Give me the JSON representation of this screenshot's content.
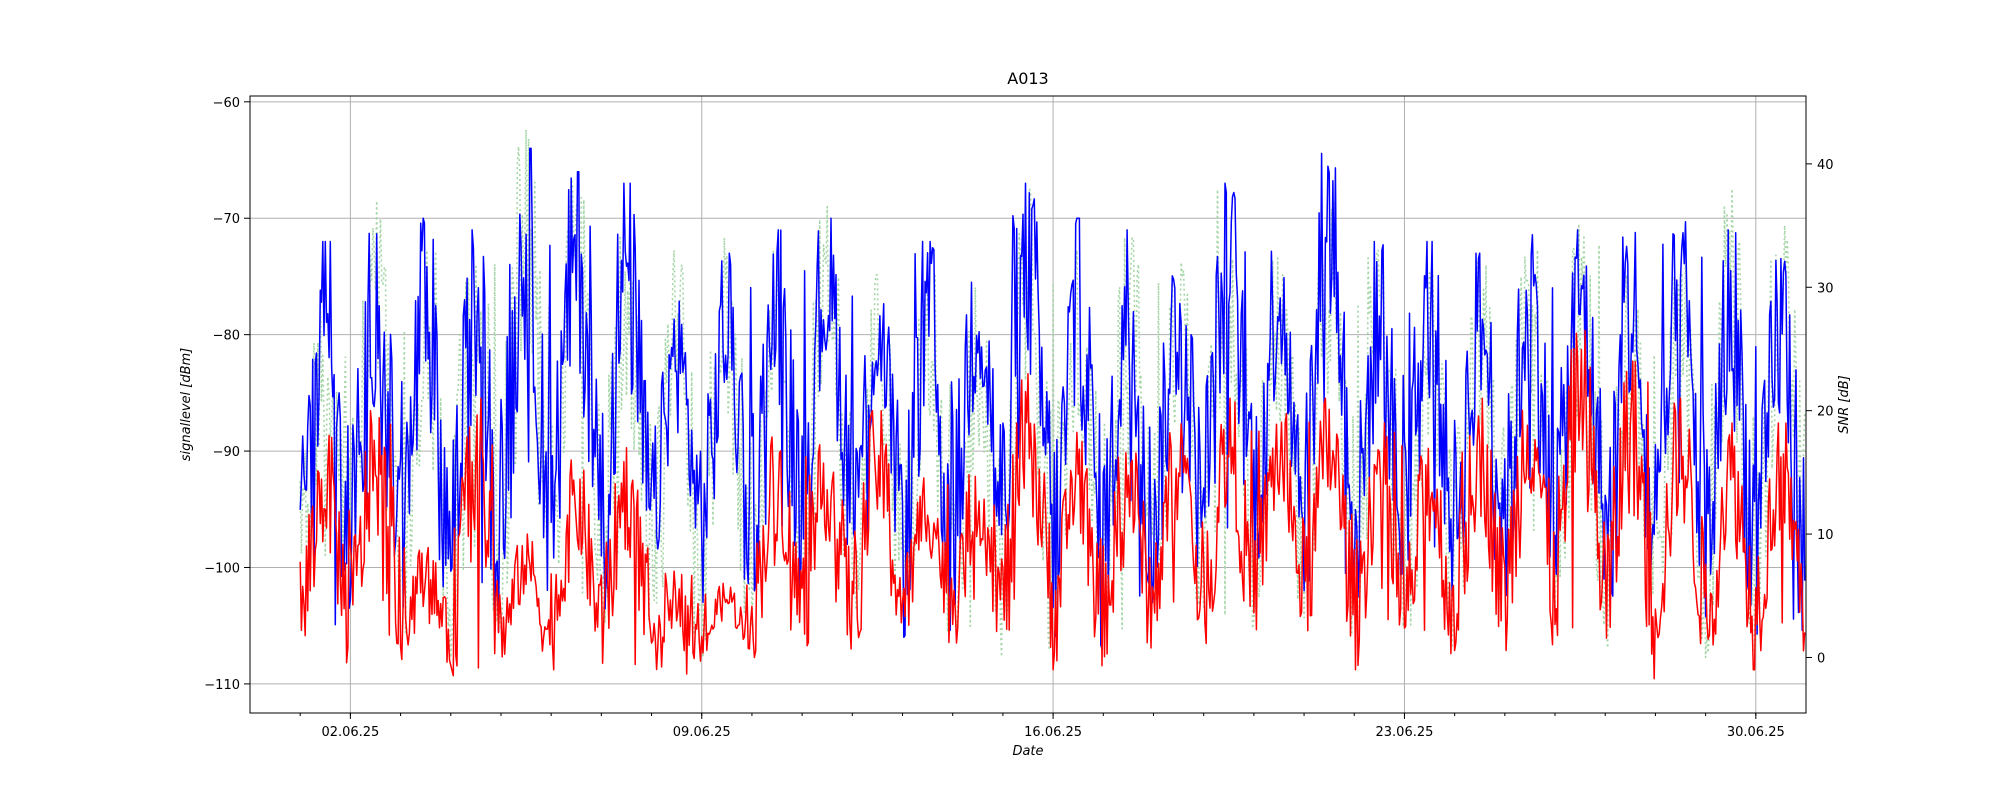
{
  "chart_data": {
    "type": "line",
    "title": "A013",
    "xlabel": "Date",
    "ylabel_left": "signallevel [dBm]",
    "ylabel_right": "SNR [dB]",
    "grid": true,
    "x_range": [
      "31.05.25",
      "01.07.25"
    ],
    "y_left_range": [
      -112.5,
      -59.5
    ],
    "y_right_range": [
      -4.5,
      45.5
    ],
    "x_ticks": [
      "02.06.25",
      "09.06.25",
      "16.06.25",
      "23.06.25",
      "30.06.25"
    ],
    "y_left_ticks": [
      -60,
      -70,
      -80,
      -90,
      -100,
      -110
    ],
    "y_right_ticks": [
      40,
      30,
      20,
      10,
      0
    ],
    "data_start": "01.06.25",
    "data_end": "30.06.25",
    "series": [
      {
        "axis": "right",
        "color": "#a5d6a7",
        "style": "dotted",
        "daily": [
          {
            "date": "01.06.25",
            "min": 4,
            "max": 30
          },
          {
            "date": "02.06.25",
            "min": 1,
            "max": 37
          },
          {
            "date": "03.06.25",
            "min": 0,
            "max": 33
          },
          {
            "date": "04.06.25",
            "min": 0,
            "max": 36
          },
          {
            "date": "05.06.25",
            "min": 2,
            "max": 43
          },
          {
            "date": "06.06.25",
            "min": 3,
            "max": 40
          },
          {
            "date": "07.06.25",
            "min": 2,
            "max": 35
          },
          {
            "date": "08.06.25",
            "min": 1,
            "max": 33
          },
          {
            "date": "09.06.25",
            "min": 0,
            "max": 34
          },
          {
            "date": "10.06.25",
            "min": 2,
            "max": 33
          },
          {
            "date": "11.06.25",
            "min": 4,
            "max": 37
          },
          {
            "date": "12.06.25",
            "min": 3,
            "max": 31
          },
          {
            "date": "13.06.25",
            "min": 0,
            "max": 33
          },
          {
            "date": "14.06.25",
            "min": 0,
            "max": 30
          },
          {
            "date": "15.06.25",
            "min": 0,
            "max": 38
          },
          {
            "date": "16.06.25",
            "min": 2,
            "max": 33
          },
          {
            "date": "17.06.25",
            "min": 2,
            "max": 34
          },
          {
            "date": "18.06.25",
            "min": 1,
            "max": 34
          },
          {
            "date": "19.06.25",
            "min": 2,
            "max": 40
          },
          {
            "date": "20.06.25",
            "min": 3,
            "max": 33
          },
          {
            "date": "21.06.25",
            "min": 2,
            "max": 37
          },
          {
            "date": "22.06.25",
            "min": 1,
            "max": 33
          },
          {
            "date": "23.06.25",
            "min": 0,
            "max": 32
          },
          {
            "date": "24.06.25",
            "min": 2,
            "max": 32
          },
          {
            "date": "25.06.25",
            "min": 2,
            "max": 35
          },
          {
            "date": "26.06.25",
            "min": 1,
            "max": 35
          },
          {
            "date": "27.06.25",
            "min": -2,
            "max": 31
          },
          {
            "date": "28.06.25",
            "min": 0,
            "max": 33
          },
          {
            "date": "29.06.25",
            "min": 0,
            "max": 38
          },
          {
            "date": "30.06.25",
            "min": 1,
            "max": 37
          }
        ]
      },
      {
        "axis": "left",
        "color": "#0000ff",
        "style": "solid",
        "daily": [
          {
            "date": "01.06.25",
            "min": -105,
            "max": -72
          },
          {
            "date": "02.06.25",
            "min": -104,
            "max": -70
          },
          {
            "date": "03.06.25",
            "min": -107,
            "max": -70
          },
          {
            "date": "04.06.25",
            "min": -106,
            "max": -71
          },
          {
            "date": "05.06.25",
            "min": -103,
            "max": -64
          },
          {
            "date": "06.06.25",
            "min": -102,
            "max": -66
          },
          {
            "date": "07.06.25",
            "min": -104,
            "max": -67
          },
          {
            "date": "08.06.25",
            "min": -101,
            "max": -77
          },
          {
            "date": "09.06.25",
            "min": -103,
            "max": -73
          },
          {
            "date": "10.06.25",
            "min": -102,
            "max": -71
          },
          {
            "date": "11.06.25",
            "min": -99,
            "max": -70
          },
          {
            "date": "12.06.25",
            "min": -100,
            "max": -75
          },
          {
            "date": "13.06.25",
            "min": -106,
            "max": -72
          },
          {
            "date": "14.06.25",
            "min": -104,
            "max": -70
          },
          {
            "date": "15.06.25",
            "min": -103,
            "max": -67
          },
          {
            "date": "16.06.25",
            "min": -107,
            "max": -70
          },
          {
            "date": "17.06.25",
            "min": -105,
            "max": -71
          },
          {
            "date": "18.06.25",
            "min": -102,
            "max": -72
          },
          {
            "date": "19.06.25",
            "min": -100,
            "max": -67
          },
          {
            "date": "20.06.25",
            "min": -101,
            "max": -70
          },
          {
            "date": "21.06.25",
            "min": -102,
            "max": -62
          },
          {
            "date": "22.06.25",
            "min": -105,
            "max": -72
          },
          {
            "date": "23.06.25",
            "min": -103,
            "max": -72
          },
          {
            "date": "24.06.25",
            "min": -102,
            "max": -73
          },
          {
            "date": "25.06.25",
            "min": -103,
            "max": -70
          },
          {
            "date": "26.06.25",
            "min": -101,
            "max": -71
          },
          {
            "date": "27.06.25",
            "min": -107,
            "max": -70
          },
          {
            "date": "28.06.25",
            "min": -104,
            "max": -70
          },
          {
            "date": "29.06.25",
            "min": -106,
            "max": -71
          },
          {
            "date": "30.06.25",
            "min": -107,
            "max": -72
          }
        ]
      },
      {
        "axis": "right",
        "color": "#ff0000",
        "style": "solid",
        "daily": [
          {
            "date": "01.06.25",
            "min": -1,
            "max": 18
          },
          {
            "date": "02.06.25",
            "min": -1,
            "max": 20
          },
          {
            "date": "03.06.25",
            "min": -1,
            "max": 9
          },
          {
            "date": "04.06.25",
            "min": -2,
            "max": 21
          },
          {
            "date": "05.06.25",
            "min": -1,
            "max": 10
          },
          {
            "date": "06.06.25",
            "min": -1,
            "max": 16
          },
          {
            "date": "07.06.25",
            "min": -1,
            "max": 17
          },
          {
            "date": "08.06.25",
            "min": -2,
            "max": 7
          },
          {
            "date": "09.06.25",
            "min": 0,
            "max": 6
          },
          {
            "date": "10.06.25",
            "min": 0,
            "max": 18
          },
          {
            "date": "11.06.25",
            "min": 0,
            "max": 18
          },
          {
            "date": "12.06.25",
            "min": 0,
            "max": 20
          },
          {
            "date": "13.06.25",
            "min": 1,
            "max": 15
          },
          {
            "date": "14.06.25",
            "min": 1,
            "max": 16
          },
          {
            "date": "15.06.25",
            "min": 0,
            "max": 23
          },
          {
            "date": "16.06.25",
            "min": -1,
            "max": 19
          },
          {
            "date": "17.06.25",
            "min": 0,
            "max": 18
          },
          {
            "date": "18.06.25",
            "min": 1,
            "max": 20
          },
          {
            "date": "19.06.25",
            "min": 1,
            "max": 21
          },
          {
            "date": "20.06.25",
            "min": 2,
            "max": 20
          },
          {
            "date": "21.06.25",
            "min": 1,
            "max": 21
          },
          {
            "date": "22.06.25",
            "min": -1,
            "max": 19
          },
          {
            "date": "23.06.25",
            "min": -1,
            "max": 18
          },
          {
            "date": "24.06.25",
            "min": 0,
            "max": 21
          },
          {
            "date": "25.06.25",
            "min": 0,
            "max": 24
          },
          {
            "date": "26.06.25",
            "min": 1,
            "max": 27
          },
          {
            "date": "27.06.25",
            "min": -2,
            "max": 24
          },
          {
            "date": "28.06.25",
            "min": 0,
            "max": 21
          },
          {
            "date": "29.06.25",
            "min": -1,
            "max": 19
          },
          {
            "date": "30.06.25",
            "min": 0,
            "max": 19
          }
        ]
      }
    ]
  }
}
